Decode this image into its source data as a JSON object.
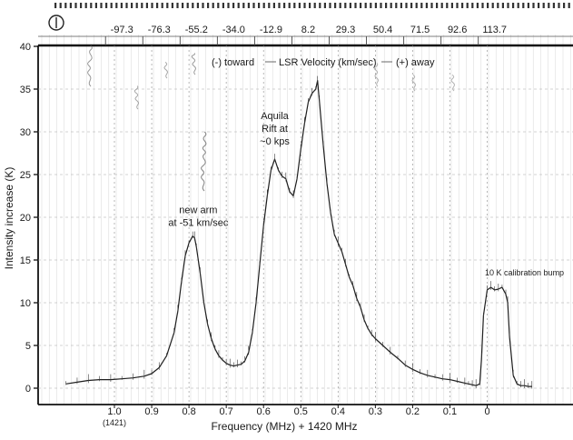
{
  "chart_data": {
    "type": "line",
    "xlabel": "Frequency (MHz) + 1420 MHz",
    "ylabel": "Intensity increase (K)",
    "xlim": [
      1.14,
      -0.13
    ],
    "ylim": [
      -0.5,
      40
    ],
    "x_ticks": [
      {
        "value": 1.0,
        "label": "1.0"
      },
      {
        "value": 0.9,
        "label": "0.9"
      },
      {
        "value": 0.8,
        "label": "0.8"
      },
      {
        "value": 0.7,
        "label": "0.7"
      },
      {
        "value": 0.6,
        "label": "0.6"
      },
      {
        "value": 0.5,
        "label": "0.5"
      },
      {
        "value": 0.4,
        "label": "0.4"
      },
      {
        "value": 0.3,
        "label": "0.3"
      },
      {
        "value": 0.2,
        "label": "0.2"
      },
      {
        "value": 0.1,
        "label": "0.1"
      },
      {
        "value": 0.0,
        "label": "0"
      }
    ],
    "x_sublabel": "(1421)",
    "y_ticks": [
      0,
      5,
      10,
      15,
      20,
      25,
      30,
      35,
      40
    ],
    "top_axis": {
      "title": "LSR Velocity (km/sec)",
      "toward": "(-) toward",
      "away": "(+) away",
      "ticks": [
        {
          "value": 0.98,
          "label": "-97.3"
        },
        {
          "value": 0.88,
          "label": "-76.3"
        },
        {
          "value": 0.78,
          "label": "-55.2"
        },
        {
          "value": 0.68,
          "label": "-34.0"
        },
        {
          "value": 0.58,
          "label": "-12.9"
        },
        {
          "value": 0.48,
          "label": "8.2"
        },
        {
          "value": 0.38,
          "label": "29.3"
        },
        {
          "value": 0.28,
          "label": "50.4"
        },
        {
          "value": 0.18,
          "label": "71.5"
        },
        {
          "value": 0.08,
          "label": "92.6"
        },
        {
          "value": -0.02,
          "label": "113.7"
        }
      ]
    },
    "series": [
      {
        "x": [
          1.13,
          1.1,
          1.07,
          1.04,
          1.01,
          0.98,
          0.95,
          0.92,
          0.9,
          0.88,
          0.86,
          0.84,
          0.83,
          0.82,
          0.81,
          0.8,
          0.79,
          0.785,
          0.78,
          0.77,
          0.76,
          0.75,
          0.74,
          0.73,
          0.72,
          0.71,
          0.7,
          0.69,
          0.68,
          0.67,
          0.66,
          0.65,
          0.64,
          0.63,
          0.62,
          0.61,
          0.6,
          0.59,
          0.58,
          0.57,
          0.56,
          0.55,
          0.54,
          0.53,
          0.52,
          0.51,
          0.5,
          0.49,
          0.48,
          0.47,
          0.46,
          0.455,
          0.45,
          0.44,
          0.43,
          0.42,
          0.41,
          0.4,
          0.39,
          0.38,
          0.37,
          0.36,
          0.35,
          0.34,
          0.33,
          0.32,
          0.31,
          0.3,
          0.28,
          0.26,
          0.24,
          0.22,
          0.2,
          0.18,
          0.16,
          0.14,
          0.12,
          0.1,
          0.08,
          0.06,
          0.05,
          0.04,
          0.03,
          0.02,
          0.015,
          0.01,
          0.0,
          -0.01,
          -0.02,
          -0.03,
          -0.04,
          -0.05,
          -0.055,
          -0.06,
          -0.07,
          -0.08,
          -0.09,
          -0.1,
          -0.11,
          -0.12
        ],
        "y": [
          0.5,
          0.7,
          0.9,
          1.0,
          1.0,
          1.1,
          1.2,
          1.4,
          1.7,
          2.4,
          3.8,
          6.5,
          9.0,
          12.5,
          15.5,
          17.0,
          17.8,
          17.6,
          16.5,
          13.5,
          10.0,
          7.5,
          5.8,
          4.6,
          3.8,
          3.3,
          2.9,
          2.7,
          2.6,
          2.7,
          2.8,
          3.2,
          4.2,
          6.5,
          10.0,
          14.5,
          19.0,
          22.5,
          25.5,
          26.8,
          25.5,
          24.8,
          24.5,
          23.0,
          22.5,
          24.5,
          28.0,
          31.0,
          33.5,
          34.5,
          35.0,
          36.0,
          33.5,
          28.5,
          24.0,
          20.5,
          18.0,
          17.0,
          16.0,
          14.5,
          13.0,
          12.0,
          10.5,
          9.5,
          8.0,
          7.0,
          6.3,
          5.8,
          5.0,
          4.2,
          3.5,
          2.7,
          2.2,
          1.8,
          1.5,
          1.3,
          1.1,
          1.0,
          0.8,
          0.6,
          0.5,
          0.4,
          0.3,
          0.5,
          3.5,
          8.5,
          11.5,
          11.8,
          11.5,
          11.6,
          11.8,
          11.0,
          10.0,
          6.0,
          1.5,
          0.5,
          0.3,
          0.3,
          0.2,
          0.2
        ]
      }
    ],
    "annotations": [
      {
        "x": 0.775,
        "y": 20.5,
        "lines": [
          "new arm",
          "at -51 km/sec"
        ]
      },
      {
        "x": 0.57,
        "y": 31.5,
        "lines": [
          "Aquila",
          "Rift at",
          "~0 kps"
        ]
      },
      {
        "x": -0.1,
        "y": 13.2,
        "lines": [
          "10 K calibration bump"
        ]
      }
    ],
    "grid": true,
    "legend": "none"
  }
}
